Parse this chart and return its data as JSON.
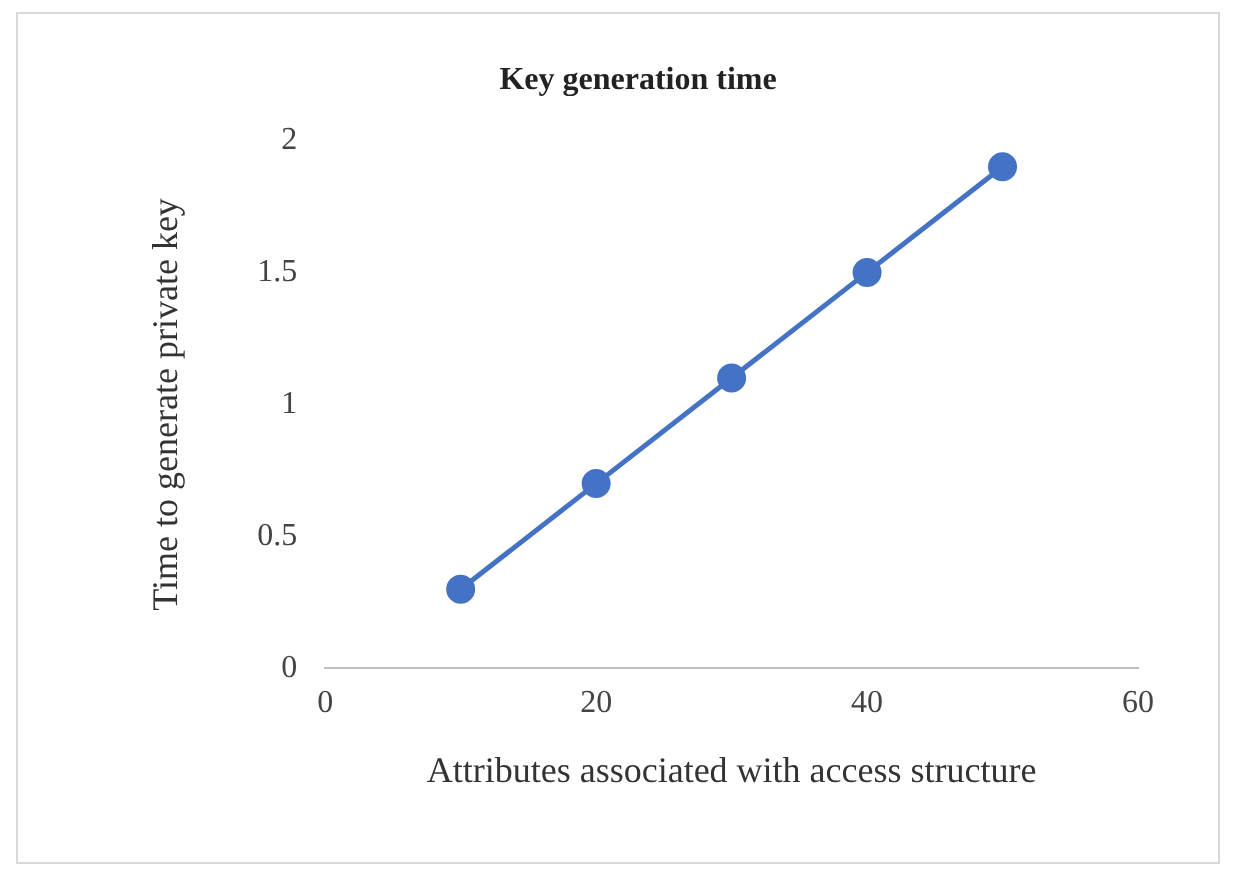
{
  "chart_data": {
    "type": "line",
    "title": "Key generation time",
    "xlabel": "Attributes associated with access structure",
    "ylabel": "Time to generate private key",
    "x": [
      10,
      20,
      30,
      40,
      50
    ],
    "series": [
      {
        "color": "#4472c4",
        "values": [
          0.3,
          0.7,
          1.1,
          1.5,
          1.9
        ]
      }
    ],
    "xlim": [
      0,
      60
    ],
    "xticks": [
      0,
      20,
      40,
      60
    ],
    "ylim": [
      0,
      2
    ],
    "yticks": [
      0,
      0.5,
      1,
      1.5,
      2
    ],
    "grid": false,
    "legend": false,
    "marker": "circle",
    "line_style": "solid"
  }
}
